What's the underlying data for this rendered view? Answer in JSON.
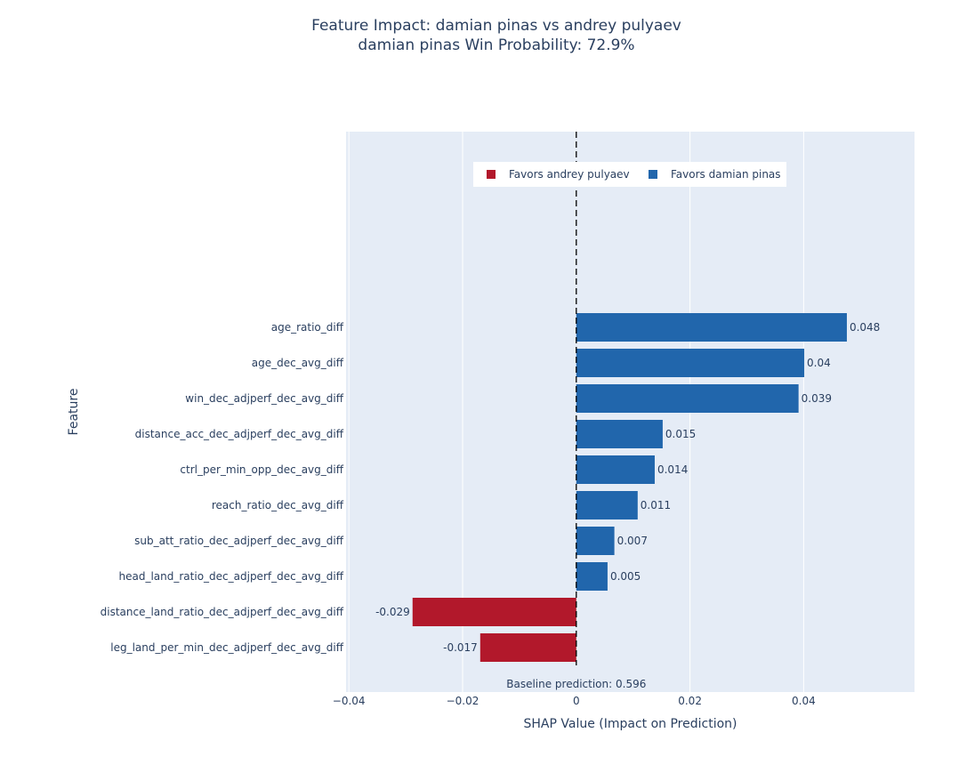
{
  "chart_data": {
    "type": "bar",
    "orientation": "horizontal",
    "title": "Feature Impact: damian pinas vs andrey pulyaev",
    "subtitle": "damian pinas Win Probability: 72.9%",
    "xlabel": "SHAP Value (Impact on Prediction)",
    "ylabel": "Feature",
    "xlim": [
      -0.0405,
      0.0595
    ],
    "xticks": [
      -0.04,
      -0.02,
      0,
      0.02,
      0.04
    ],
    "xtick_labels": [
      "−0.04",
      "−0.02",
      "0",
      "0.02",
      "0.04"
    ],
    "grid": true,
    "legend_position": "top-center",
    "legend": [
      {
        "name": "Favors andrey pulyaev",
        "color": "#b2182b"
      },
      {
        "name": "Favors damian pinas",
        "color": "#2166ac"
      }
    ],
    "categories": [
      "age_ratio_diff",
      "age_dec_avg_diff",
      "win_dec_adjperf_dec_avg_diff",
      "distance_acc_dec_adjperf_dec_avg_diff",
      "ctrl_per_min_opp_dec_avg_diff",
      "reach_ratio_dec_avg_diff",
      "sub_att_ratio_dec_adjperf_dec_avg_diff",
      "head_land_ratio_dec_adjperf_dec_avg_diff",
      "distance_land_ratio_dec_adjperf_dec_avg_diff",
      "leg_land_per_min_dec_adjperf_dec_avg_diff"
    ],
    "values": [
      0.0476,
      0.0401,
      0.0391,
      0.0152,
      0.0138,
      0.0108,
      0.0067,
      0.0055,
      -0.0288,
      -0.0169
    ],
    "value_labels": [
      "0.048",
      "0.04",
      "0.039",
      "0.015",
      "0.014",
      "0.011",
      "0.007",
      "0.005",
      "-0.029",
      "-0.017"
    ],
    "annotation": "Baseline prediction: 0.596",
    "colors": {
      "positive": "#2166ac",
      "negative": "#b2182b",
      "plot_bg": "#e5ecf6",
      "grid": "#ffffff"
    }
  }
}
